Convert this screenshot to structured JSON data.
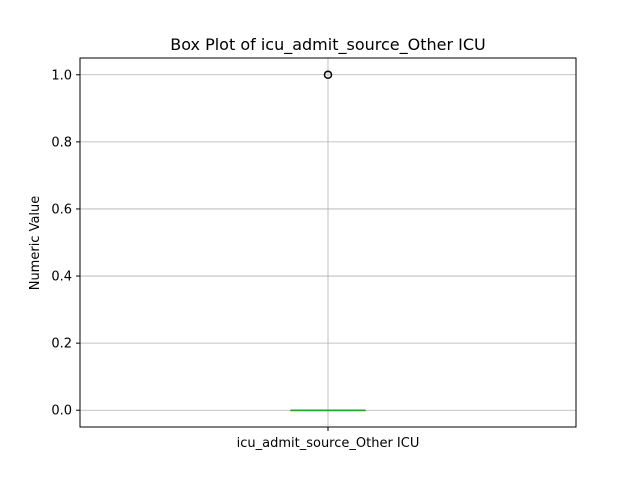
{
  "chart_data": {
    "type": "box",
    "title": "Box Plot of icu_admit_source_Other ICU",
    "xlabel": "",
    "ylabel": "Numeric Value",
    "categories": [
      "icu_admit_source_Other ICU"
    ],
    "yticks": [
      "0.0",
      "0.2",
      "0.4",
      "0.6",
      "0.8",
      "1.0"
    ],
    "ylim": [
      -0.05,
      1.05
    ],
    "grid": true,
    "boxes": [
      {
        "category": "icu_admit_source_Other ICU",
        "min": 0.0,
        "q1": 0.0,
        "median": 0.0,
        "q3": 0.0,
        "max": 0.0,
        "outliers": [
          1.0
        ]
      }
    ],
    "colors": {
      "median": "#2ca02c",
      "box": "#1f77b4",
      "grid": "#b0b0b0",
      "axes": "#000000",
      "outlier": "#000000"
    }
  }
}
